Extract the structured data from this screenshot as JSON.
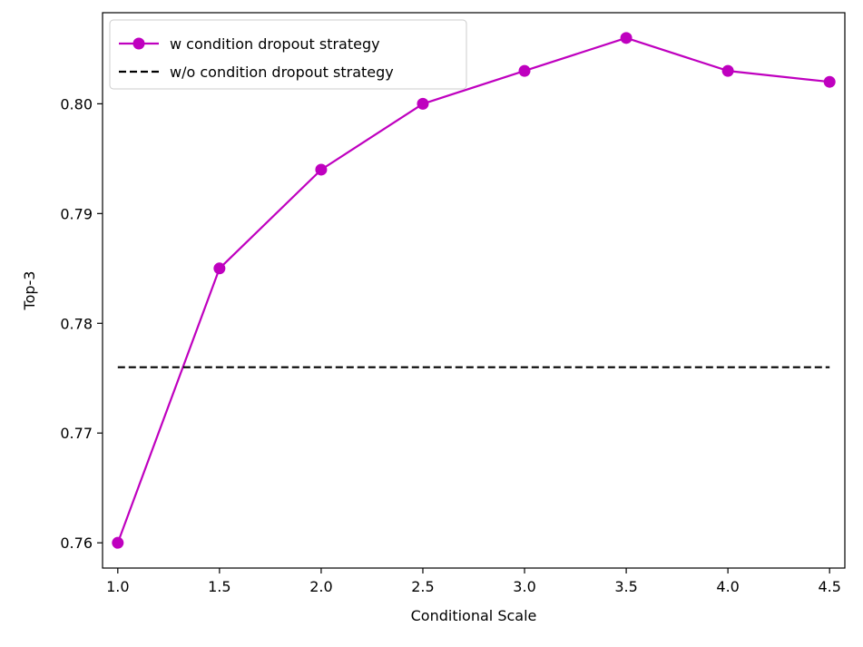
{
  "chart_data": {
    "type": "line",
    "title": "",
    "xlabel": "Conditional Scale",
    "ylabel": "Top-3",
    "xlim": [
      0.925,
      4.575
    ],
    "ylim": [
      0.7577,
      0.8083
    ],
    "xticks": [
      1.0,
      1.5,
      2.0,
      2.5,
      3.0,
      3.5,
      4.0,
      4.5
    ],
    "xtick_labels": [
      "1.0",
      "1.5",
      "2.0",
      "2.5",
      "3.0",
      "3.5",
      "4.0",
      "4.5"
    ],
    "yticks": [
      0.76,
      0.77,
      0.78,
      0.79,
      0.8
    ],
    "ytick_labels": [
      "0.76",
      "0.77",
      "0.78",
      "0.79",
      "0.80"
    ],
    "grid": false,
    "legend_position": "top-left",
    "series": [
      {
        "name": "w condition dropout strategy",
        "style": "solid-marker",
        "color": "#bf00bf",
        "x": [
          1.0,
          1.5,
          2.0,
          2.5,
          3.0,
          3.5,
          4.0,
          4.5
        ],
        "y": [
          0.76,
          0.785,
          0.794,
          0.8,
          0.803,
          0.806,
          0.803,
          0.802
        ]
      },
      {
        "name": "w/o condition dropout strategy",
        "style": "dashed",
        "color": "#000000",
        "x": [
          1.0,
          4.5
        ],
        "y": [
          0.776,
          0.776
        ]
      }
    ]
  }
}
